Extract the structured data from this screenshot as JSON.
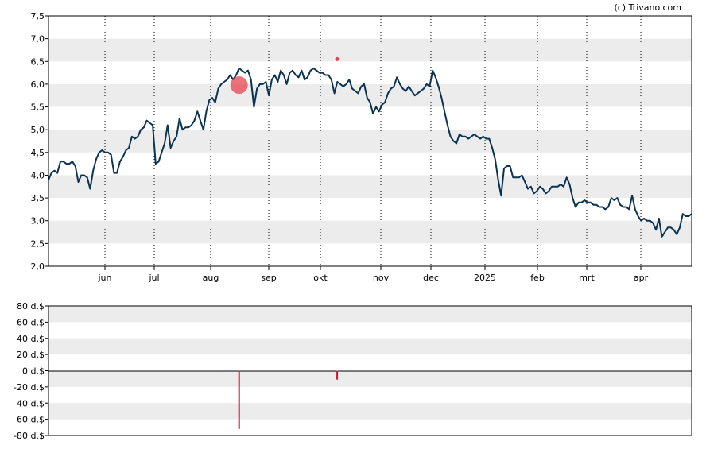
{
  "watermark": "(c) Trivano.com",
  "colors": {
    "price_line": "#0b3350",
    "band": "#ececec",
    "volume_bar": "#d6112f",
    "marker": "#e8414f"
  },
  "chart_data": [
    {
      "type": "line",
      "y_tick_labels": [
        "2,0",
        "2,5",
        "3,0",
        "3,5",
        "4,0",
        "4,5",
        "5,0",
        "5,5",
        "6,0",
        "6,5",
        "7,0",
        "7,5"
      ],
      "ylim": [
        2.0,
        7.5
      ],
      "x_tick_labels": [
        "jun",
        "jul",
        "aug",
        "sep",
        "okt",
        "nov",
        "dec",
        "2025",
        "feb",
        "mrt",
        "apr"
      ],
      "grid": "vertical dotted at months, alternating horizontal bands",
      "series": [
        {
          "values": [
            3.9,
            4.05,
            4.1,
            4.05,
            4.3,
            4.3,
            4.25,
            4.25,
            4.3,
            4.2,
            3.85,
            4.0,
            4.0,
            3.95,
            3.7,
            4.1,
            4.35,
            4.5,
            4.55,
            4.5,
            4.5,
            4.45,
            4.05,
            4.05,
            4.3,
            4.4,
            4.55,
            4.6,
            4.85,
            4.8,
            4.85,
            5.0,
            5.05,
            5.2,
            5.15,
            5.1,
            4.25,
            4.3,
            4.5,
            4.7,
            5.1,
            4.6,
            4.75,
            4.85,
            5.25,
            5.0,
            5.05,
            5.05,
            5.1,
            5.2,
            5.4,
            5.2,
            5.0,
            5.4,
            5.65,
            5.7,
            5.6,
            5.9,
            6.0,
            6.05,
            6.1,
            6.2,
            6.1,
            6.2,
            6.35,
            6.3,
            6.25,
            6.3,
            6.1,
            5.5,
            5.9,
            6.0,
            6.0,
            6.05,
            5.75,
            6.1,
            6.2,
            6.05,
            6.3,
            6.2,
            6.0,
            6.25,
            6.3,
            6.2,
            6.15,
            6.3,
            6.1,
            6.15,
            6.3,
            6.35,
            6.3,
            6.25,
            6.25,
            6.2,
            6.2,
            6.1,
            5.8,
            6.05,
            6.0,
            5.95,
            6.0,
            6.1,
            5.9,
            5.85,
            5.8,
            5.95,
            6.0,
            5.7,
            5.6,
            5.35,
            5.5,
            5.4,
            5.55,
            5.6,
            5.8,
            5.9,
            5.95,
            6.15,
            6.0,
            5.9,
            5.85,
            5.95,
            5.85,
            5.75,
            5.8,
            5.85,
            5.9,
            6.0,
            5.95,
            6.3,
            6.15,
            5.95,
            5.7,
            5.4,
            5.1,
            4.85,
            4.75,
            4.7,
            4.9,
            4.85,
            4.85,
            4.8,
            4.85,
            4.9,
            4.85,
            4.8,
            4.85,
            4.8,
            4.8,
            4.6,
            4.35,
            3.9,
            3.55,
            4.15,
            4.2,
            4.2,
            3.95,
            3.95,
            3.95,
            4.0,
            3.85,
            3.7,
            3.75,
            3.6,
            3.65,
            3.75,
            3.7,
            3.6,
            3.65,
            3.75,
            3.75,
            3.75,
            3.8,
            3.75,
            3.95,
            3.8,
            3.5,
            3.3,
            3.4,
            3.4,
            3.45,
            3.4,
            3.4,
            3.35,
            3.35,
            3.3,
            3.3,
            3.25,
            3.3,
            3.5,
            3.45,
            3.5,
            3.35,
            3.3,
            3.3,
            3.25,
            3.55,
            3.25,
            3.1,
            3.0,
            3.05,
            3.0,
            3.0,
            2.95,
            2.8,
            3.05,
            2.65,
            2.75,
            2.85,
            2.85,
            2.8,
            2.7,
            2.85,
            3.15,
            3.1,
            3.1,
            3.15
          ]
        }
      ],
      "annotations": [
        {
          "type": "circle",
          "value": 5.98,
          "at_month": 3.4
        },
        {
          "type": "dot",
          "value": 6.55,
          "at_month": 5.15
        }
      ]
    },
    {
      "type": "bar",
      "y_tick_labels": [
        "-80 d.$",
        "-60 d.$",
        "-40 d.$",
        "-20 d.$",
        "0 d.$",
        "20 d.$",
        "40 d.$",
        "60 d.$",
        "80 d.$"
      ],
      "ylim": [
        -80,
        80
      ],
      "bars": [
        {
          "at_month": 3.4,
          "value": -72
        },
        {
          "at_month": 5.15,
          "value": -11
        }
      ]
    }
  ]
}
